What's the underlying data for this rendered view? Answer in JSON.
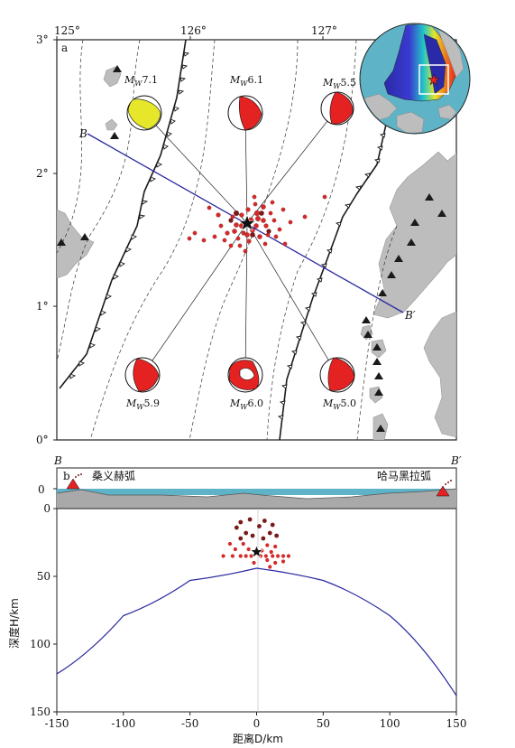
{
  "map": {
    "panel_label": "a",
    "x_ticks": [
      "125°",
      "126°",
      "127°"
    ],
    "y_ticks": [
      "3°",
      "2°",
      "1°",
      "0°"
    ],
    "profile_start": "B",
    "profile_end": "B′",
    "mechanisms": [
      {
        "prefix": "M",
        "sub": "W",
        "value": "7.1",
        "color": "#e6e62a"
      },
      {
        "prefix": "M",
        "sub": "W",
        "value": "6.1",
        "color": "#e52222"
      },
      {
        "prefix": "M",
        "sub": "W",
        "value": "5.5",
        "color": "#e52222"
      },
      {
        "prefix": "M",
        "sub": "W",
        "value": "5.9",
        "color": "#e52222"
      },
      {
        "prefix": "M",
        "sub": "W",
        "value": "6.0",
        "color": "#e52222"
      },
      {
        "prefix": "M",
        "sub": "W",
        "value": "5.0",
        "color": "#e52222"
      }
    ]
  },
  "section": {
    "panel_label": "b",
    "start_label": "B",
    "end_label": "B′",
    "left_arc": "桑义赫弧",
    "right_arc": "哈马黑拉弧",
    "surface_tick": "0",
    "y_label": "深度H/km",
    "x_label": "距离D/km",
    "x_ticks": [
      "-150",
      "-100",
      "-50",
      "0",
      "50",
      "100",
      "150"
    ],
    "y_ticks": [
      "0",
      "50",
      "100",
      "150"
    ]
  },
  "colors": {
    "event": "#d42a2a",
    "event_dark": "#7a1a1a",
    "fault": "#1a1a1a",
    "profile_line": "#2a2aa0",
    "land": "#bdbdbd",
    "sea": "#5fb3c7",
    "volcano_section": "#e52222"
  },
  "chart_data": {
    "type": "scatter",
    "panel_b": {
      "xlim": [
        -150,
        150
      ],
      "ylim": [
        0,
        150
      ],
      "y_inverted": true,
      "xlabel": "距离D/km",
      "ylabel": "深度H/km",
      "hypocenters": [
        {
          "x": -12,
          "y": 10
        },
        {
          "x": -5,
          "y": 8
        },
        {
          "x": 6,
          "y": 9
        },
        {
          "x": 12,
          "y": 12
        },
        {
          "x": -15,
          "y": 14
        },
        {
          "x": 2,
          "y": 13
        },
        {
          "x": 10,
          "y": 18
        },
        {
          "x": -8,
          "y": 18
        },
        {
          "x": -3,
          "y": 20
        },
        {
          "x": 5,
          "y": 22
        },
        {
          "x": -12,
          "y": 22
        },
        {
          "x": 15,
          "y": 20
        },
        {
          "x": -20,
          "y": 26
        },
        {
          "x": -10,
          "y": 26
        },
        {
          "x": 8,
          "y": 27
        },
        {
          "x": 14,
          "y": 28
        },
        {
          "x": -16,
          "y": 30
        },
        {
          "x": -6,
          "y": 30
        },
        {
          "x": 4,
          "y": 31
        },
        {
          "x": 11,
          "y": 32
        },
        {
          "x": -25,
          "y": 35
        },
        {
          "x": -18,
          "y": 35
        },
        {
          "x": -12,
          "y": 35
        },
        {
          "x": -8,
          "y": 35
        },
        {
          "x": -4,
          "y": 35
        },
        {
          "x": 3,
          "y": 35
        },
        {
          "x": 7,
          "y": 35
        },
        {
          "x": 12,
          "y": 35
        },
        {
          "x": 16,
          "y": 35
        },
        {
          "x": 20,
          "y": 35
        },
        {
          "x": 24,
          "y": 35
        },
        {
          "x": 8,
          "y": 38
        },
        {
          "x": 14,
          "y": 40
        },
        {
          "x": 20,
          "y": 39
        },
        {
          "x": -2,
          "y": 40
        },
        {
          "x": 10,
          "y": 43
        }
      ],
      "mainshock": {
        "x": 0,
        "y": 32
      },
      "slab_interface": [
        {
          "x": -150,
          "y": 122
        },
        {
          "x": -100,
          "y": 79
        },
        {
          "x": -50,
          "y": 53
        },
        {
          "x": 0,
          "y": 44
        },
        {
          "x": 50,
          "y": 53
        },
        {
          "x": 100,
          "y": 79
        },
        {
          "x": 150,
          "y": 138
        }
      ]
    }
  }
}
